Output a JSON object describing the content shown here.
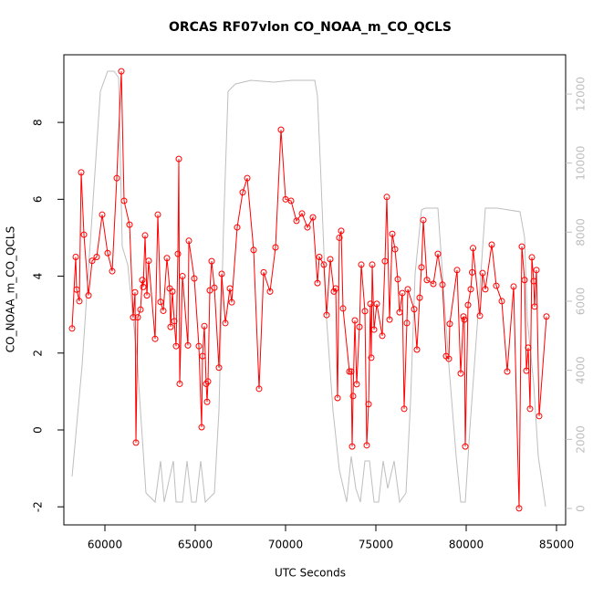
{
  "chart_data": {
    "type": "scatter",
    "title": "ORCAS RF07vlon CO_NOAA_m_CO_QCLS",
    "xlabel": "UTC Seconds",
    "ylabel": "CO_NOAA_m_CO_QCLS",
    "xlim": [
      57727,
      85505
    ],
    "ylim": [
      -2.47,
      9.76
    ],
    "y2lim": [
      -476,
      13137
    ],
    "xticks": [
      60000,
      65000,
      70000,
      75000,
      80000,
      85000
    ],
    "yticks": [
      -2,
      0,
      2,
      4,
      6,
      8
    ],
    "y2ticks": [
      0,
      2000,
      4000,
      6000,
      8000,
      10000,
      12000
    ],
    "series": [
      {
        "color": "#bebebe",
        "axis": "y2",
        "x": [
          58182,
          58737,
          59242,
          59747,
          60152,
          60505,
          60758,
          60960,
          61263,
          61768,
          62273,
          62778,
          63081,
          63283,
          63788,
          63939,
          64293,
          64545,
          64798,
          65051,
          65303,
          65556,
          66061,
          66313,
          66566,
          66818,
          67222,
          68081,
          69343,
          70354,
          71616,
          71768,
          71970,
          72273,
          72626,
          72980,
          73384,
          73636,
          73889,
          74141,
          74394,
          74646,
          74899,
          75152,
          75404,
          75657,
          76010,
          76313,
          76667,
          76919,
          77172,
          77525,
          77727,
          78434,
          78687,
          79040,
          79444,
          79697,
          79949,
          80202,
          80707,
          81061,
          81717,
          82980,
          83232,
          83384,
          83737,
          83990,
          84394
        ],
        "values": [
          925,
          4150,
          8114,
          12078,
          12660,
          12660,
          12475,
          7585,
          7057,
          4414,
          449,
          185,
          1374,
          185,
          1374,
          185,
          185,
          1374,
          185,
          185,
          1374,
          185,
          449,
          2828,
          8114,
          12078,
          12290,
          12396,
          12343,
          12396,
          12396,
          11946,
          9436,
          5471,
          2828,
          1110,
          185,
          1507,
          581,
          185,
          1374,
          1374,
          185,
          185,
          1374,
          581,
          1374,
          185,
          449,
          3092,
          6793,
          8643,
          8695,
          8695,
          6793,
          4150,
          1507,
          185,
          185,
          2299,
          6000,
          8695,
          8695,
          8590,
          7850,
          5471,
          3621,
          1507,
          53
        ]
      },
      {
        "color": "#ff0000",
        "x": [
          58182,
          58384,
          58435,
          58586,
          58687,
          58838,
          59091,
          59293,
          59545,
          59848,
          60152,
          60404,
          60657,
          60909,
          61061,
          61364,
          61566,
          61667,
          61717,
          61818,
          61970,
          62071,
          62121,
          62222,
          62323,
          62424,
          62778,
          62929,
          63081,
          63232,
          63434,
          63586,
          63636,
          63737,
          63838,
          63939,
          64040,
          64091,
          64141,
          64293,
          64596,
          64646,
          64949,
          65202,
          65353,
          65404,
          65505,
          65606,
          65657,
          65707,
          65808,
          65909,
          66061,
          66313,
          66465,
          66667,
          66919,
          67020,
          67323,
          67626,
          67879,
          68232,
          68535,
          68788,
          69141,
          69444,
          69747,
          70000,
          70303,
          70606,
          70909,
          71212,
          71515,
          71768,
          71869,
          72121,
          72273,
          72475,
          72677,
          72778,
          72879,
          72980,
          73081,
          73182,
          73535,
          73636,
          73687,
          73737,
          73838,
          73939,
          74091,
          74192,
          74394,
          74495,
          74596,
          74697,
          74747,
          74798,
          74899,
          75051,
          75354,
          75505,
          75606,
          75758,
          75909,
          76061,
          76212,
          76313,
          76465,
          76566,
          76717,
          76768,
          77121,
          77273,
          77424,
          77525,
          77626,
          77828,
          78182,
          78434,
          78687,
          78889,
          79040,
          79091,
          79495,
          79697,
          79848,
          79899,
          79949,
          80101,
          80253,
          80330,
          80380,
          80758,
          80909,
          81061,
          81414,
          81667,
          81970,
          82273,
          82626,
          82929,
          83081,
          83232,
          83333,
          83434,
          83535,
          83636,
          83737,
          83788,
          83889,
          84040,
          84444
        ],
        "values": [
          2.64,
          4.5,
          3.65,
          3.35,
          6.7,
          5.08,
          3.5,
          4.4,
          4.5,
          5.6,
          4.6,
          4.13,
          6.55,
          9.33,
          5.96,
          5.34,
          2.93,
          3.58,
          -0.33,
          2.93,
          3.13,
          3.9,
          3.72,
          5.06,
          3.5,
          4.4,
          2.37,
          5.6,
          3.33,
          3.1,
          4.47,
          3.68,
          2.68,
          3.6,
          2.83,
          2.18,
          4.58,
          7.05,
          1.2,
          4.0,
          2.2,
          4.92,
          3.94,
          2.18,
          0.07,
          1.92,
          2.7,
          1.2,
          0.73,
          1.26,
          3.63,
          4.39,
          3.7,
          1.62,
          4.06,
          2.78,
          3.68,
          3.32,
          5.27,
          6.18,
          6.55,
          4.68,
          1.07,
          4.1,
          3.6,
          4.75,
          7.81,
          6.0,
          5.96,
          5.44,
          5.63,
          5.27,
          5.53,
          3.82,
          4.5,
          4.3,
          2.99,
          4.44,
          3.6,
          3.68,
          0.83,
          5.0,
          5.18,
          3.16,
          1.52,
          1.52,
          -0.43,
          0.88,
          2.85,
          1.19,
          2.68,
          4.3,
          3.09,
          -0.4,
          0.67,
          3.28,
          1.88,
          4.3,
          2.61,
          3.28,
          2.45,
          4.39,
          6.06,
          2.87,
          5.1,
          4.7,
          3.92,
          3.06,
          3.56,
          0.55,
          2.78,
          3.66,
          3.14,
          2.09,
          3.44,
          4.23,
          5.46,
          3.9,
          3.8,
          4.58,
          3.78,
          1.92,
          1.85,
          2.76,
          4.16,
          1.47,
          2.95,
          2.87,
          -0.43,
          3.25,
          3.66,
          4.1,
          4.73,
          2.97,
          4.08,
          3.66,
          4.82,
          3.75,
          3.35,
          1.52,
          3.73,
          -2.04,
          4.77,
          3.9,
          1.54,
          2.14,
          0.55,
          4.49,
          3.87,
          3.21,
          4.16,
          0.36,
          2.95
        ]
      }
    ]
  }
}
